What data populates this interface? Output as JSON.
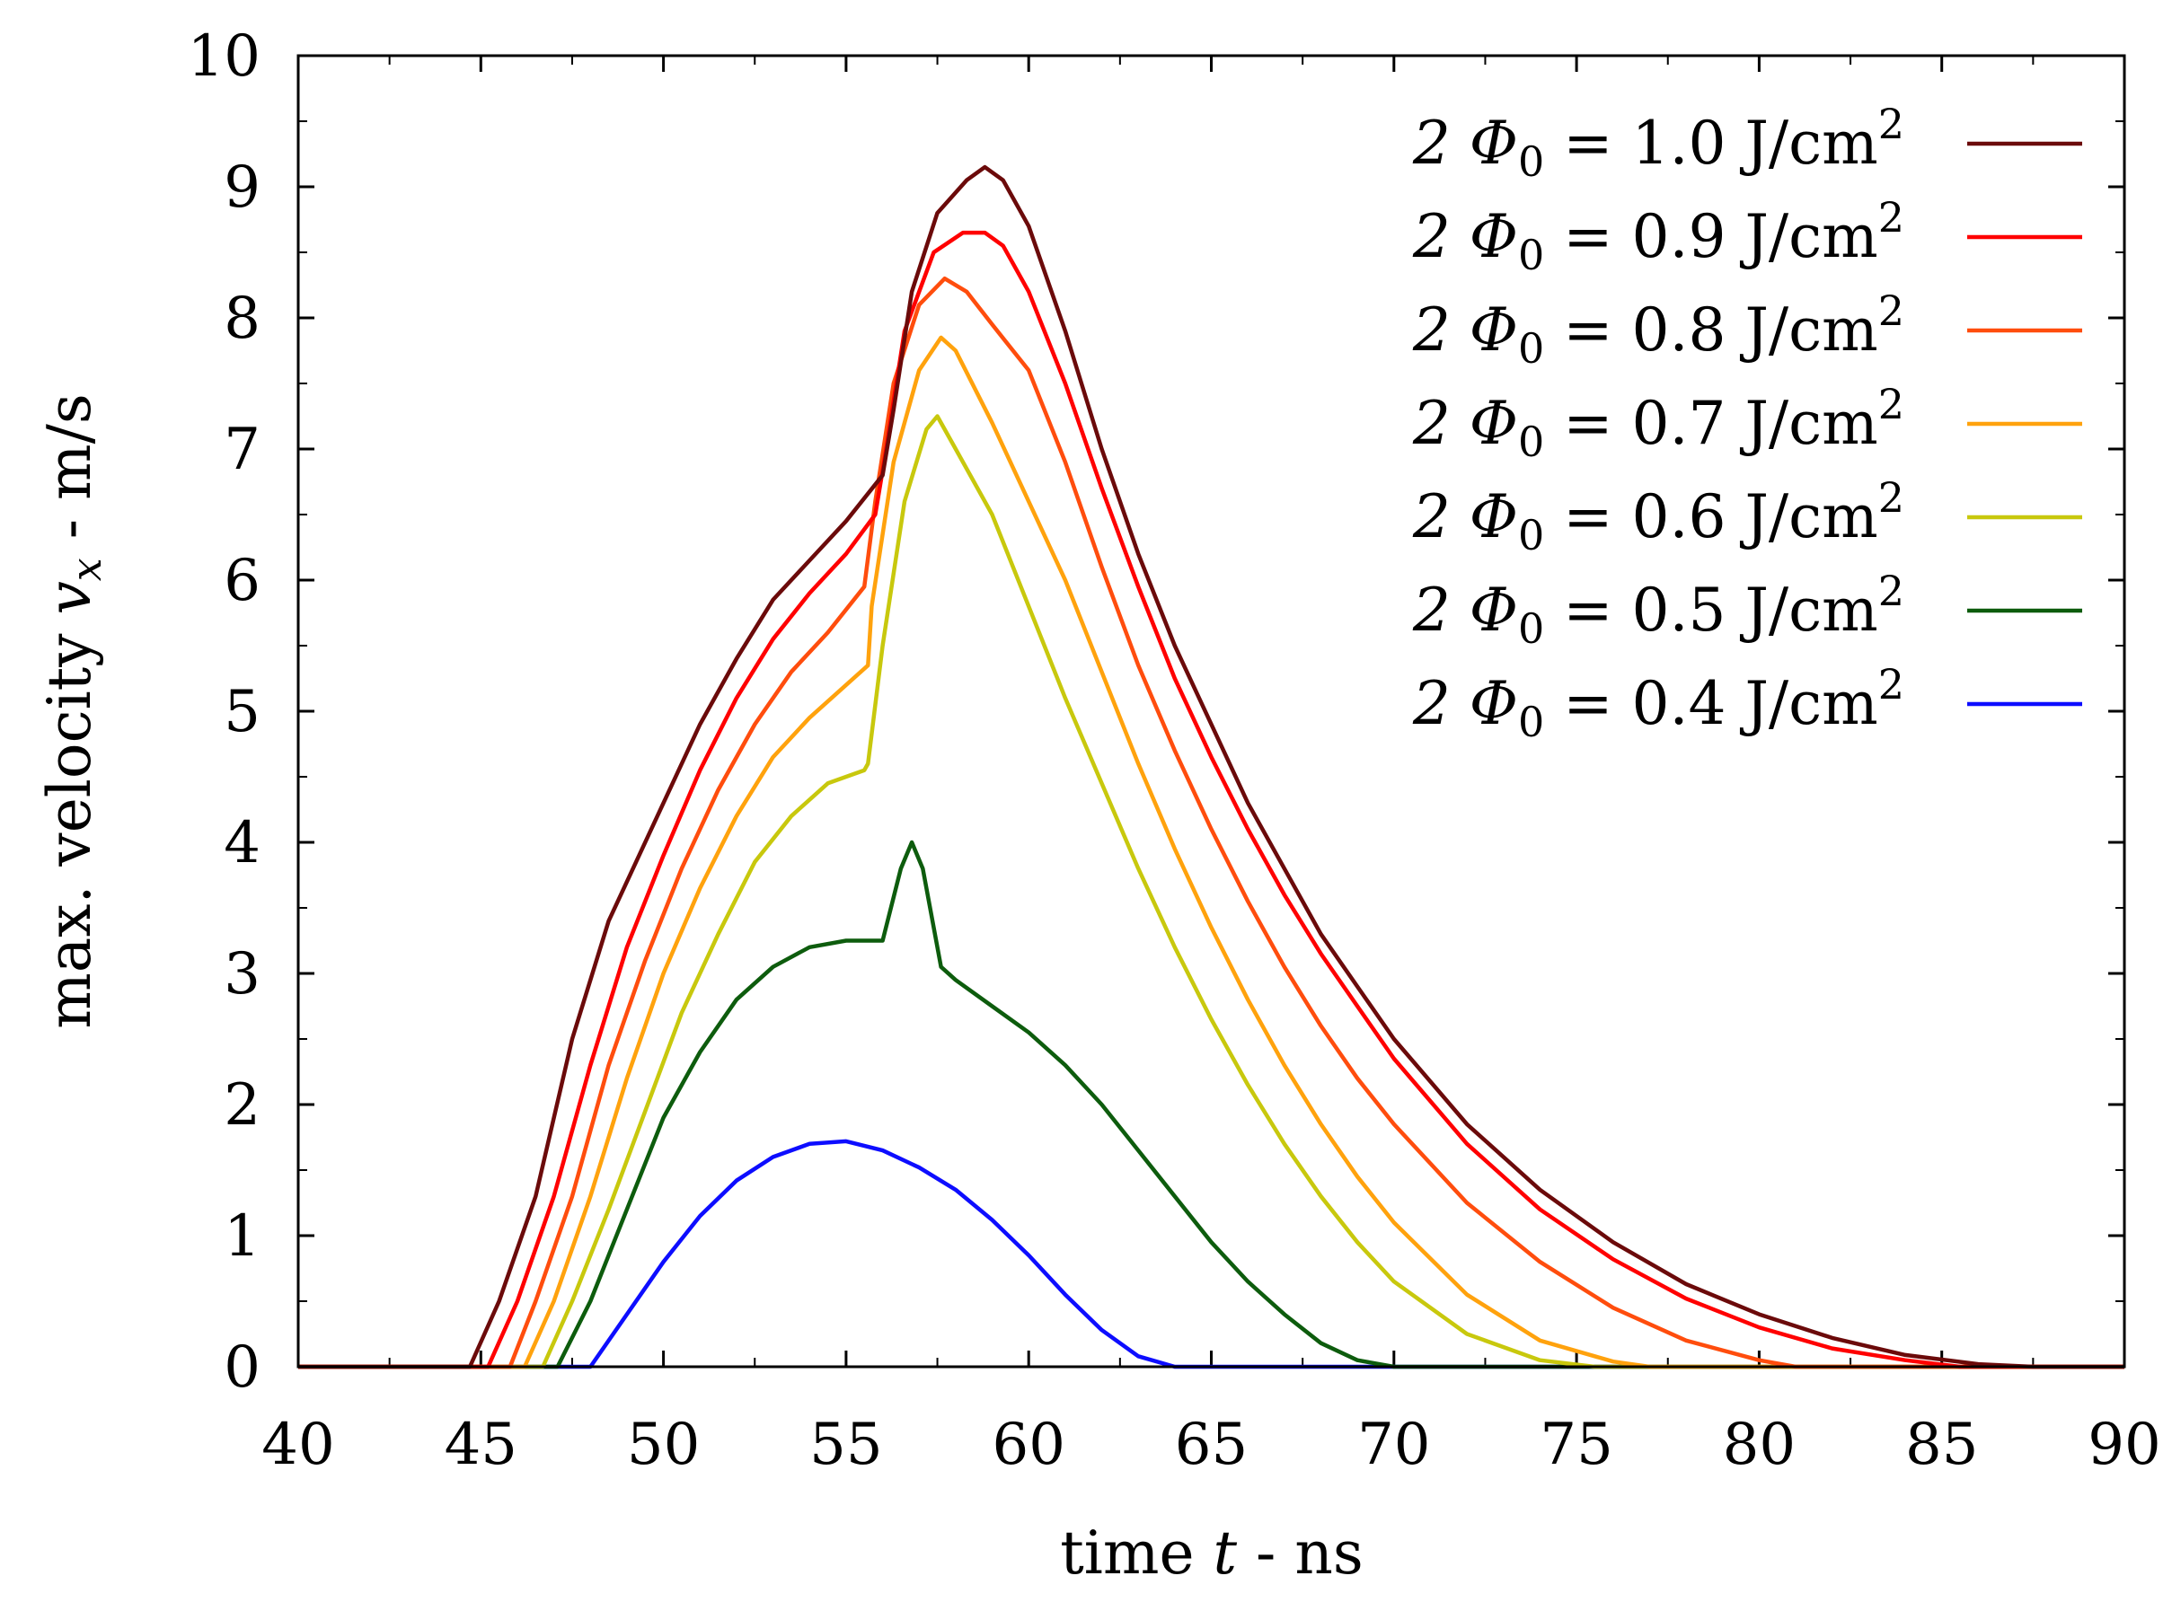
{
  "chart_data": {
    "type": "line",
    "xlabel": "time t - ns",
    "ylabel": "max. velocity v_x - m/s",
    "xlim": [
      40,
      90
    ],
    "ylim": [
      0,
      10
    ],
    "x_ticks": [
      "40",
      "45",
      "50",
      "55",
      "60",
      "65",
      "70",
      "75",
      "80",
      "85",
      "90"
    ],
    "y_ticks": [
      "0",
      "1",
      "2",
      "3",
      "4",
      "5",
      "6",
      "7",
      "8",
      "9",
      "10"
    ],
    "legend_position": "top-right",
    "grid": false,
    "series": [
      {
        "name": "2 Φ0 = 1.0 J/cm2",
        "label_prefix": "2 Φ",
        "label_sub": "0",
        "label_mid": " = 1.0 J/cm",
        "label_sup": "2",
        "color": "#6b0a0a",
        "points": [
          [
            40,
            0
          ],
          [
            44.7,
            0
          ],
          [
            45.5,
            0.5
          ],
          [
            46.5,
            1.3
          ],
          [
            47.5,
            2.5
          ],
          [
            48.5,
            3.4
          ],
          [
            50,
            4.3
          ],
          [
            51,
            4.9
          ],
          [
            52,
            5.4
          ],
          [
            53,
            5.85
          ],
          [
            54,
            6.15
          ],
          [
            55,
            6.45
          ],
          [
            56,
            6.8
          ],
          [
            56.3,
            7.3
          ],
          [
            56.8,
            8.2
          ],
          [
            57.5,
            8.8
          ],
          [
            58.3,
            9.05
          ],
          [
            58.8,
            9.15
          ],
          [
            59.3,
            9.05
          ],
          [
            60,
            8.7
          ],
          [
            61,
            7.9
          ],
          [
            62,
            7.0
          ],
          [
            63,
            6.2
          ],
          [
            64,
            5.5
          ],
          [
            65,
            4.9
          ],
          [
            66,
            4.3
          ],
          [
            67,
            3.8
          ],
          [
            68,
            3.3
          ],
          [
            69,
            2.9
          ],
          [
            70,
            2.5
          ],
          [
            72,
            1.85
          ],
          [
            74,
            1.35
          ],
          [
            76,
            0.95
          ],
          [
            78,
            0.63
          ],
          [
            80,
            0.4
          ],
          [
            82,
            0.22
          ],
          [
            84,
            0.09
          ],
          [
            86,
            0.02
          ],
          [
            87.5,
            0
          ],
          [
            90,
            0
          ]
        ]
      },
      {
        "name": "2 Φ0 = 0.9 J/cm2",
        "label_prefix": "2 Φ",
        "label_sub": "0",
        "label_mid": " = 0.9 J/cm",
        "label_sup": "2",
        "color": "#ff0000",
        "points": [
          [
            40,
            0
          ],
          [
            45.2,
            0
          ],
          [
            46,
            0.5
          ],
          [
            47,
            1.3
          ],
          [
            48,
            2.3
          ],
          [
            49,
            3.2
          ],
          [
            50,
            3.9
          ],
          [
            51,
            4.55
          ],
          [
            52,
            5.1
          ],
          [
            53,
            5.55
          ],
          [
            54,
            5.9
          ],
          [
            55,
            6.2
          ],
          [
            55.8,
            6.5
          ],
          [
            56.1,
            7.0
          ],
          [
            56.6,
            7.9
          ],
          [
            57.4,
            8.5
          ],
          [
            58.2,
            8.65
          ],
          [
            58.8,
            8.65
          ],
          [
            59.3,
            8.55
          ],
          [
            60,
            8.2
          ],
          [
            61,
            7.5
          ],
          [
            62,
            6.7
          ],
          [
            63,
            5.95
          ],
          [
            64,
            5.25
          ],
          [
            65,
            4.65
          ],
          [
            66,
            4.1
          ],
          [
            67,
            3.6
          ],
          [
            68,
            3.15
          ],
          [
            69,
            2.75
          ],
          [
            70,
            2.35
          ],
          [
            72,
            1.7
          ],
          [
            74,
            1.2
          ],
          [
            76,
            0.82
          ],
          [
            78,
            0.52
          ],
          [
            80,
            0.3
          ],
          [
            82,
            0.14
          ],
          [
            84,
            0.05
          ],
          [
            85.5,
            0
          ],
          [
            90,
            0
          ]
        ]
      },
      {
        "name": "2 Φ0 = 0.8 J/cm2",
        "label_prefix": "2 Φ",
        "label_sub": "0",
        "label_mid": " = 0.8 J/cm",
        "label_sup": "2",
        "color": "#ff4d0d",
        "points": [
          [
            40,
            0
          ],
          [
            45.8,
            0
          ],
          [
            46.5,
            0.5
          ],
          [
            47.5,
            1.3
          ],
          [
            48.5,
            2.3
          ],
          [
            49.5,
            3.1
          ],
          [
            50.5,
            3.8
          ],
          [
            51.5,
            4.4
          ],
          [
            52.5,
            4.9
          ],
          [
            53.5,
            5.3
          ],
          [
            54.5,
            5.6
          ],
          [
            55.5,
            5.95
          ],
          [
            55.8,
            6.6
          ],
          [
            56.3,
            7.5
          ],
          [
            57,
            8.1
          ],
          [
            57.7,
            8.3
          ],
          [
            58.3,
            8.2
          ],
          [
            59,
            7.95
          ],
          [
            60,
            7.6
          ],
          [
            61,
            6.9
          ],
          [
            62,
            6.1
          ],
          [
            63,
            5.35
          ],
          [
            64,
            4.7
          ],
          [
            65,
            4.1
          ],
          [
            66,
            3.55
          ],
          [
            67,
            3.05
          ],
          [
            68,
            2.6
          ],
          [
            69,
            2.2
          ],
          [
            70,
            1.85
          ],
          [
            72,
            1.25
          ],
          [
            74,
            0.8
          ],
          [
            76,
            0.45
          ],
          [
            78,
            0.2
          ],
          [
            80,
            0.05
          ],
          [
            81,
            0
          ],
          [
            90,
            0
          ]
        ]
      },
      {
        "name": "2 Φ0 = 0.7 J/cm2",
        "label_prefix": "2 Φ",
        "label_sub": "0",
        "label_mid": " = 0.7 J/cm",
        "label_sup": "2",
        "color": "#ffa20d",
        "points": [
          [
            40,
            0
          ],
          [
            46.2,
            0
          ],
          [
            47,
            0.5
          ],
          [
            48,
            1.3
          ],
          [
            49,
            2.2
          ],
          [
            50,
            3.0
          ],
          [
            51,
            3.65
          ],
          [
            52,
            4.2
          ],
          [
            53,
            4.65
          ],
          [
            54,
            4.95
          ],
          [
            55,
            5.2
          ],
          [
            55.6,
            5.35
          ],
          [
            55.7,
            5.8
          ],
          [
            56.3,
            6.9
          ],
          [
            57,
            7.6
          ],
          [
            57.6,
            7.85
          ],
          [
            58,
            7.75
          ],
          [
            59,
            7.2
          ],
          [
            60,
            6.6
          ],
          [
            61,
            6.0
          ],
          [
            62,
            5.3
          ],
          [
            63,
            4.6
          ],
          [
            64,
            3.95
          ],
          [
            65,
            3.35
          ],
          [
            66,
            2.8
          ],
          [
            67,
            2.3
          ],
          [
            68,
            1.85
          ],
          [
            69,
            1.45
          ],
          [
            70,
            1.1
          ],
          [
            72,
            0.55
          ],
          [
            74,
            0.2
          ],
          [
            76,
            0.04
          ],
          [
            77,
            0
          ],
          [
            90,
            0
          ]
        ]
      },
      {
        "name": "2 Φ0 = 0.6 J/cm2",
        "label_prefix": "2 Φ",
        "label_sub": "0",
        "label_mid": " = 0.6 J/cm",
        "label_sup": "2",
        "color": "#c8c80d",
        "points": [
          [
            40,
            0
          ],
          [
            46.7,
            0
          ],
          [
            47.5,
            0.5
          ],
          [
            48.5,
            1.2
          ],
          [
            49.5,
            1.95
          ],
          [
            50.5,
            2.7
          ],
          [
            51.5,
            3.3
          ],
          [
            52.5,
            3.85
          ],
          [
            53.5,
            4.2
          ],
          [
            54.5,
            4.45
          ],
          [
            55.5,
            4.55
          ],
          [
            55.6,
            4.6
          ],
          [
            56,
            5.5
          ],
          [
            56.6,
            6.6
          ],
          [
            57.2,
            7.15
          ],
          [
            57.5,
            7.25
          ],
          [
            58,
            7.0
          ],
          [
            59,
            6.5
          ],
          [
            60,
            5.8
          ],
          [
            61,
            5.1
          ],
          [
            62,
            4.45
          ],
          [
            63,
            3.8
          ],
          [
            64,
            3.2
          ],
          [
            65,
            2.65
          ],
          [
            66,
            2.15
          ],
          [
            67,
            1.7
          ],
          [
            68,
            1.3
          ],
          [
            69,
            0.95
          ],
          [
            70,
            0.65
          ],
          [
            72,
            0.25
          ],
          [
            74,
            0.05
          ],
          [
            75.5,
            0
          ],
          [
            90,
            0
          ]
        ]
      },
      {
        "name": "2 Φ0 = 0.5 J/cm2",
        "label_prefix": "2 Φ",
        "label_sub": "0",
        "label_mid": " = 0.5 J/cm",
        "label_sup": "2",
        "color": "#0d5c0d",
        "points": [
          [
            40,
            0
          ],
          [
            47.1,
            0
          ],
          [
            48,
            0.5
          ],
          [
            49,
            1.2
          ],
          [
            50,
            1.9
          ],
          [
            51,
            2.4
          ],
          [
            52,
            2.8
          ],
          [
            53,
            3.05
          ],
          [
            54,
            3.2
          ],
          [
            55,
            3.25
          ],
          [
            55.5,
            3.25
          ],
          [
            56,
            3.25
          ],
          [
            56.5,
            3.8
          ],
          [
            56.8,
            4.0
          ],
          [
            57.1,
            3.8
          ],
          [
            57.6,
            3.05
          ],
          [
            58,
            2.95
          ],
          [
            59,
            2.75
          ],
          [
            60,
            2.55
          ],
          [
            61,
            2.3
          ],
          [
            62,
            2.0
          ],
          [
            63,
            1.65
          ],
          [
            64,
            1.3
          ],
          [
            65,
            0.95
          ],
          [
            66,
            0.65
          ],
          [
            67,
            0.4
          ],
          [
            68,
            0.18
          ],
          [
            69,
            0.05
          ],
          [
            70,
            0
          ],
          [
            90,
            0
          ]
        ]
      },
      {
        "name": "2 Φ0 = 0.4 J/cm2",
        "label_prefix": "2 Φ",
        "label_sub": "0",
        "label_mid": " = 0.4 J/cm",
        "label_sup": "2",
        "color": "#0d0dff",
        "points": [
          [
            40,
            0
          ],
          [
            48,
            0
          ],
          [
            49,
            0.4
          ],
          [
            50,
            0.8
          ],
          [
            51,
            1.15
          ],
          [
            52,
            1.42
          ],
          [
            53,
            1.6
          ],
          [
            54,
            1.7
          ],
          [
            55,
            1.72
          ],
          [
            56,
            1.65
          ],
          [
            57,
            1.52
          ],
          [
            58,
            1.35
          ],
          [
            59,
            1.12
          ],
          [
            60,
            0.85
          ],
          [
            61,
            0.55
          ],
          [
            62,
            0.28
          ],
          [
            63,
            0.08
          ],
          [
            64,
            0
          ],
          [
            90,
            0
          ]
        ]
      }
    ]
  }
}
